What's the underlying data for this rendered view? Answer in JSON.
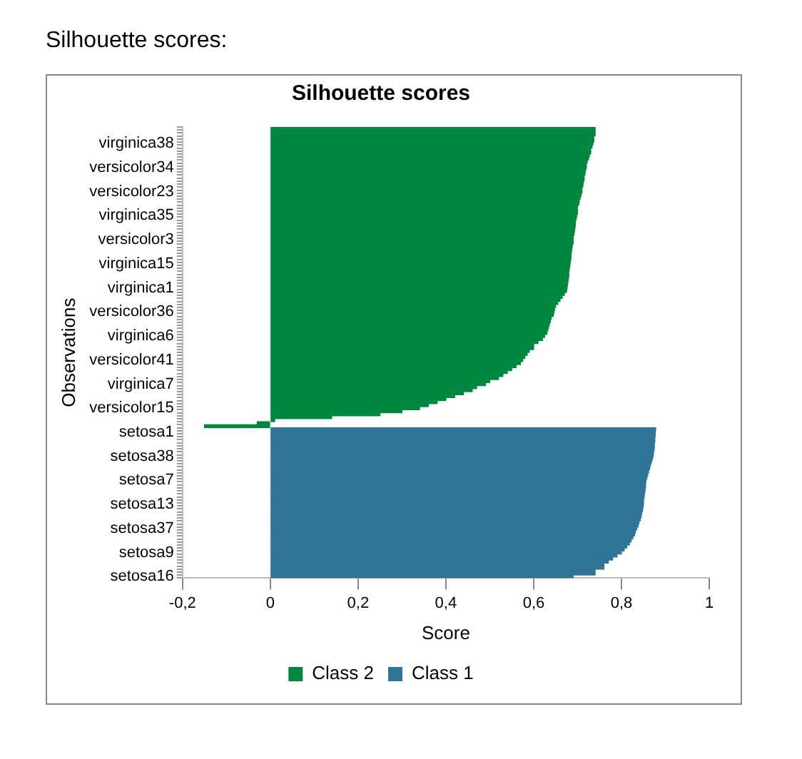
{
  "chart_data": {
    "type": "bar",
    "orientation": "horizontal",
    "title": "Silhouette scores",
    "xlabel": "Score",
    "ylabel": "Observations",
    "annotations": [
      "Silhouette scores:"
    ],
    "categories": [
      null,
      null,
      null,
      null,
      null,
      "virginica38",
      null,
      null,
      null,
      null,
      null,
      null,
      null,
      "versicolor34",
      null,
      null,
      null,
      null,
      null,
      null,
      null,
      "versicolor23",
      null,
      null,
      null,
      null,
      null,
      null,
      null,
      "virginica35",
      null,
      null,
      null,
      null,
      null,
      null,
      null,
      "versicolor3",
      null,
      null,
      null,
      null,
      null,
      null,
      null,
      "virginica15",
      null,
      null,
      null,
      null,
      null,
      null,
      null,
      "virginica1",
      null,
      null,
      null,
      null,
      null,
      null,
      null,
      "versicolor36",
      null,
      null,
      null,
      null,
      null,
      null,
      null,
      "virginica6",
      null,
      null,
      null,
      null,
      null,
      null,
      null,
      "versicolor41",
      null,
      null,
      null,
      null,
      null,
      null,
      null,
      "virginica7",
      null,
      null,
      null,
      null,
      null,
      null,
      null,
      "versicolor15",
      null,
      null,
      null,
      null,
      null,
      null,
      null,
      "setosa1",
      null,
      null,
      null,
      null,
      null,
      null,
      null,
      "setosa38",
      null,
      null,
      null,
      null,
      null,
      null,
      null,
      "setosa7",
      null,
      null,
      null,
      null,
      null,
      null,
      null,
      "setosa13",
      null,
      null,
      null,
      null,
      null,
      null,
      null,
      "setosa37",
      null,
      null,
      null,
      null,
      null,
      null,
      null,
      "setosa9",
      null,
      null,
      null,
      null,
      null,
      null,
      null,
      "setosa16"
    ],
    "series": [
      {
        "name": "Class 2",
        "color": "#00873f",
        "values": [
          0.74,
          0.74,
          0.74,
          0.737,
          0.737,
          0.735,
          0.733,
          0.73,
          0.73,
          0.727,
          0.725,
          0.722,
          0.72,
          0.72,
          0.718,
          0.717,
          0.715,
          0.715,
          0.713,
          0.712,
          0.71,
          0.71,
          0.708,
          0.706,
          0.704,
          0.703,
          0.7,
          0.7,
          0.7,
          0.698,
          0.697,
          0.695,
          0.695,
          0.694,
          0.693,
          0.692,
          0.69,
          0.69,
          0.69,
          0.688,
          0.687,
          0.686,
          0.685,
          0.685,
          0.684,
          0.683,
          0.682,
          0.681,
          0.68,
          0.68,
          0.679,
          0.678,
          0.677,
          0.676,
          0.675,
          0.67,
          0.665,
          0.66,
          0.655,
          0.65,
          0.648,
          0.646,
          0.645,
          0.64,
          0.638,
          0.636,
          0.634,
          0.632,
          0.63,
          0.625,
          0.62,
          0.61,
          0.6,
          0.6,
          0.59,
          0.585,
          0.58,
          0.575,
          0.57,
          0.56,
          0.55,
          0.54,
          0.53,
          0.52,
          0.5,
          0.49,
          0.47,
          0.46,
          0.44,
          0.42,
          0.4,
          0.38,
          0.36,
          0.34,
          0.3,
          0.25,
          0.14,
          0.01,
          -0.03,
          -0.15,
          null,
          null,
          null,
          null,
          null,
          null,
          null,
          null,
          null,
          null,
          null,
          null,
          null,
          null,
          null,
          null,
          null,
          null,
          null,
          null,
          null,
          null,
          null,
          null,
          null,
          null,
          null,
          null,
          null,
          null,
          null,
          null,
          null,
          null,
          null,
          null,
          null,
          null,
          null,
          null,
          null,
          null,
          null,
          null,
          null,
          null,
          null,
          null,
          null,
          null
        ]
      },
      {
        "name": "Class 1",
        "color": "#2e7598",
        "values": [
          null,
          null,
          null,
          null,
          null,
          null,
          null,
          null,
          null,
          null,
          null,
          null,
          null,
          null,
          null,
          null,
          null,
          null,
          null,
          null,
          null,
          null,
          null,
          null,
          null,
          null,
          null,
          null,
          null,
          null,
          null,
          null,
          null,
          null,
          null,
          null,
          null,
          null,
          null,
          null,
          null,
          null,
          null,
          null,
          null,
          null,
          null,
          null,
          null,
          null,
          null,
          null,
          null,
          null,
          null,
          null,
          null,
          null,
          null,
          null,
          null,
          null,
          null,
          null,
          null,
          null,
          null,
          null,
          null,
          null,
          null,
          null,
          null,
          null,
          null,
          null,
          null,
          null,
          null,
          null,
          null,
          null,
          null,
          null,
          null,
          null,
          null,
          null,
          null,
          null,
          null,
          null,
          null,
          null,
          null,
          null,
          null,
          null,
          null,
          null,
          0.878,
          0.877,
          0.877,
          0.876,
          0.876,
          0.875,
          0.875,
          0.874,
          0.873,
          0.872,
          0.87,
          0.868,
          0.866,
          0.864,
          0.862,
          0.86,
          0.858,
          0.856,
          0.855,
          0.855,
          0.854,
          0.853,
          0.852,
          0.851,
          0.85,
          0.85,
          0.849,
          0.848,
          0.846,
          0.845,
          0.843,
          0.84,
          0.838,
          0.835,
          0.832,
          0.83,
          0.826,
          0.822,
          0.818,
          0.812,
          0.806,
          0.8,
          0.79,
          0.78,
          0.77,
          0.76,
          0.76,
          0.74,
          0.74,
          0.69
        ]
      }
    ],
    "xlim": [
      -0.2,
      1
    ],
    "xticks": [
      {
        "value": -0.2,
        "label": "-0,2"
      },
      0,
      {
        "value": 0.2,
        "label": "0,2"
      },
      {
        "value": 0.4,
        "label": "0,4"
      },
      {
        "value": 0.6,
        "label": "0,6"
      },
      {
        "value": 0.8,
        "label": "0,8"
      },
      1
    ],
    "grid": false,
    "legend": "bottom"
  }
}
